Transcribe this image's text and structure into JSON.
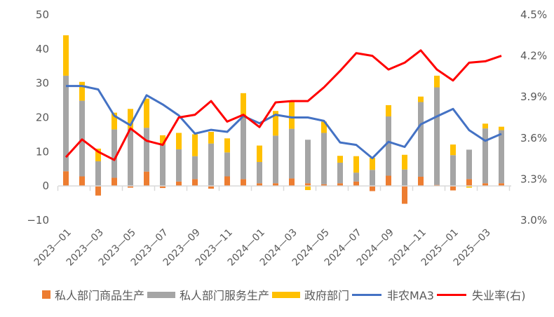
{
  "chart_data": {
    "type": "bar+line",
    "title": "",
    "categories": [
      "2023-01",
      "2023-02",
      "2023-03",
      "2023-04",
      "2023-05",
      "2023-06",
      "2023-07",
      "2023-08",
      "2023-09",
      "2023-10",
      "2023-11",
      "2023-12",
      "2024-01",
      "2024-02",
      "2024-03",
      "2024-04",
      "2024-05",
      "2024-06",
      "2024-07",
      "2024-08",
      "2024-09",
      "2024-10",
      "2024-11",
      "2024-12",
      "2025-01",
      "2025-02",
      "2025-03",
      "2025-04"
    ],
    "x_tick_labels": [
      "2023-01",
      "2023-03",
      "2023-05",
      "2023-07",
      "2023-09",
      "2023-11",
      "2024-01",
      "2024-03",
      "2024-05",
      "2024-07",
      "2024-09",
      "2024-11",
      "2025-01",
      "2025-03"
    ],
    "left_axis": {
      "min": -10,
      "max": 50,
      "ticks": [
        50,
        40,
        30,
        20,
        10,
        0,
        -10
      ],
      "label": ""
    },
    "right_axis": {
      "min": 3.0,
      "max": 4.5,
      "ticks": [
        "4.5%",
        "4.2%",
        "3.9%",
        "3.6%",
        "3.3%",
        "3.0%"
      ],
      "label": ""
    },
    "series": [
      {
        "name": "私人部门商品生产",
        "type": "stacked-bar",
        "axis": "left",
        "color": "#ED7D31",
        "values": [
          4.3,
          2.8,
          -2.8,
          2.4,
          -0.5,
          4.2,
          -0.6,
          1.3,
          2.0,
          -0.8,
          2.8,
          2.0,
          0.8,
          0.8,
          2.2,
          0.8,
          0.5,
          0.8,
          1.3,
          -1.5,
          3.0,
          -5.2,
          2.7,
          0.3,
          -1.3,
          2.0,
          0.8,
          0.8
        ]
      },
      {
        "name": "私人部门服务生产",
        "type": "stacked-bar",
        "axis": "left",
        "color": "#A5A5A5",
        "values": [
          27.9,
          22.1,
          7.2,
          14.1,
          16.7,
          12.8,
          12.1,
          9.4,
          6.7,
          12.4,
          7.0,
          17.8,
          6.2,
          13.9,
          14.5,
          12.7,
          15.0,
          6.0,
          2.6,
          4.7,
          17.3,
          4.8,
          21.8,
          28.5,
          9.0,
          8.6,
          16.0,
          15.5
        ]
      },
      {
        "name": "政府部门",
        "type": "stacked-bar",
        "axis": "left",
        "color": "#FFC000",
        "values": [
          11.8,
          5.5,
          3.7,
          4.9,
          5.8,
          8.5,
          2.7,
          4.8,
          6.4,
          3.4,
          4.1,
          7.3,
          4.8,
          7.2,
          8.3,
          -1.2,
          3.3,
          2.0,
          4.8,
          3.5,
          3.3,
          4.3,
          1.6,
          3.4,
          3.1,
          -0.5,
          1.4,
          1.0
        ]
      },
      {
        "name": "非农MA3",
        "type": "line",
        "axis": "left",
        "color": "#4472C4",
        "values": [
          29.2,
          29.2,
          28.2,
          20.5,
          17.7,
          26.5,
          23.8,
          20.6,
          15.3,
          16.4,
          15.8,
          20.4,
          18.3,
          20.8,
          20.0,
          20.0,
          19.0,
          12.7,
          12.0,
          8.1,
          12.9,
          11.4,
          18.0,
          20.3,
          22.5,
          16.3,
          13.2,
          15.2
        ]
      },
      {
        "name": "失业率(右)",
        "type": "line",
        "axis": "right",
        "color": "#FF0000",
        "values": [
          3.46,
          3.59,
          3.5,
          3.44,
          3.67,
          3.58,
          3.55,
          3.75,
          3.77,
          3.87,
          3.72,
          3.77,
          3.68,
          3.86,
          3.87,
          3.87,
          3.97,
          4.09,
          4.22,
          4.2,
          4.1,
          4.15,
          4.24,
          4.1,
          4.02,
          4.15,
          4.16,
          4.2
        ]
      }
    ],
    "legend_position": "bottom",
    "grid": false
  },
  "legend": {
    "items": [
      {
        "label": "私人部门商品生产",
        "color": "#ED7D31",
        "kind": "box"
      },
      {
        "label": "私人部门服务生产",
        "color": "#A5A5A5",
        "kind": "box"
      },
      {
        "label": "政府部门",
        "color": "#FFC000",
        "kind": "box"
      },
      {
        "label": "非农MA3",
        "color": "#4472C4",
        "kind": "line"
      },
      {
        "label": "失业率(右)",
        "color": "#FF0000",
        "kind": "line"
      }
    ]
  }
}
